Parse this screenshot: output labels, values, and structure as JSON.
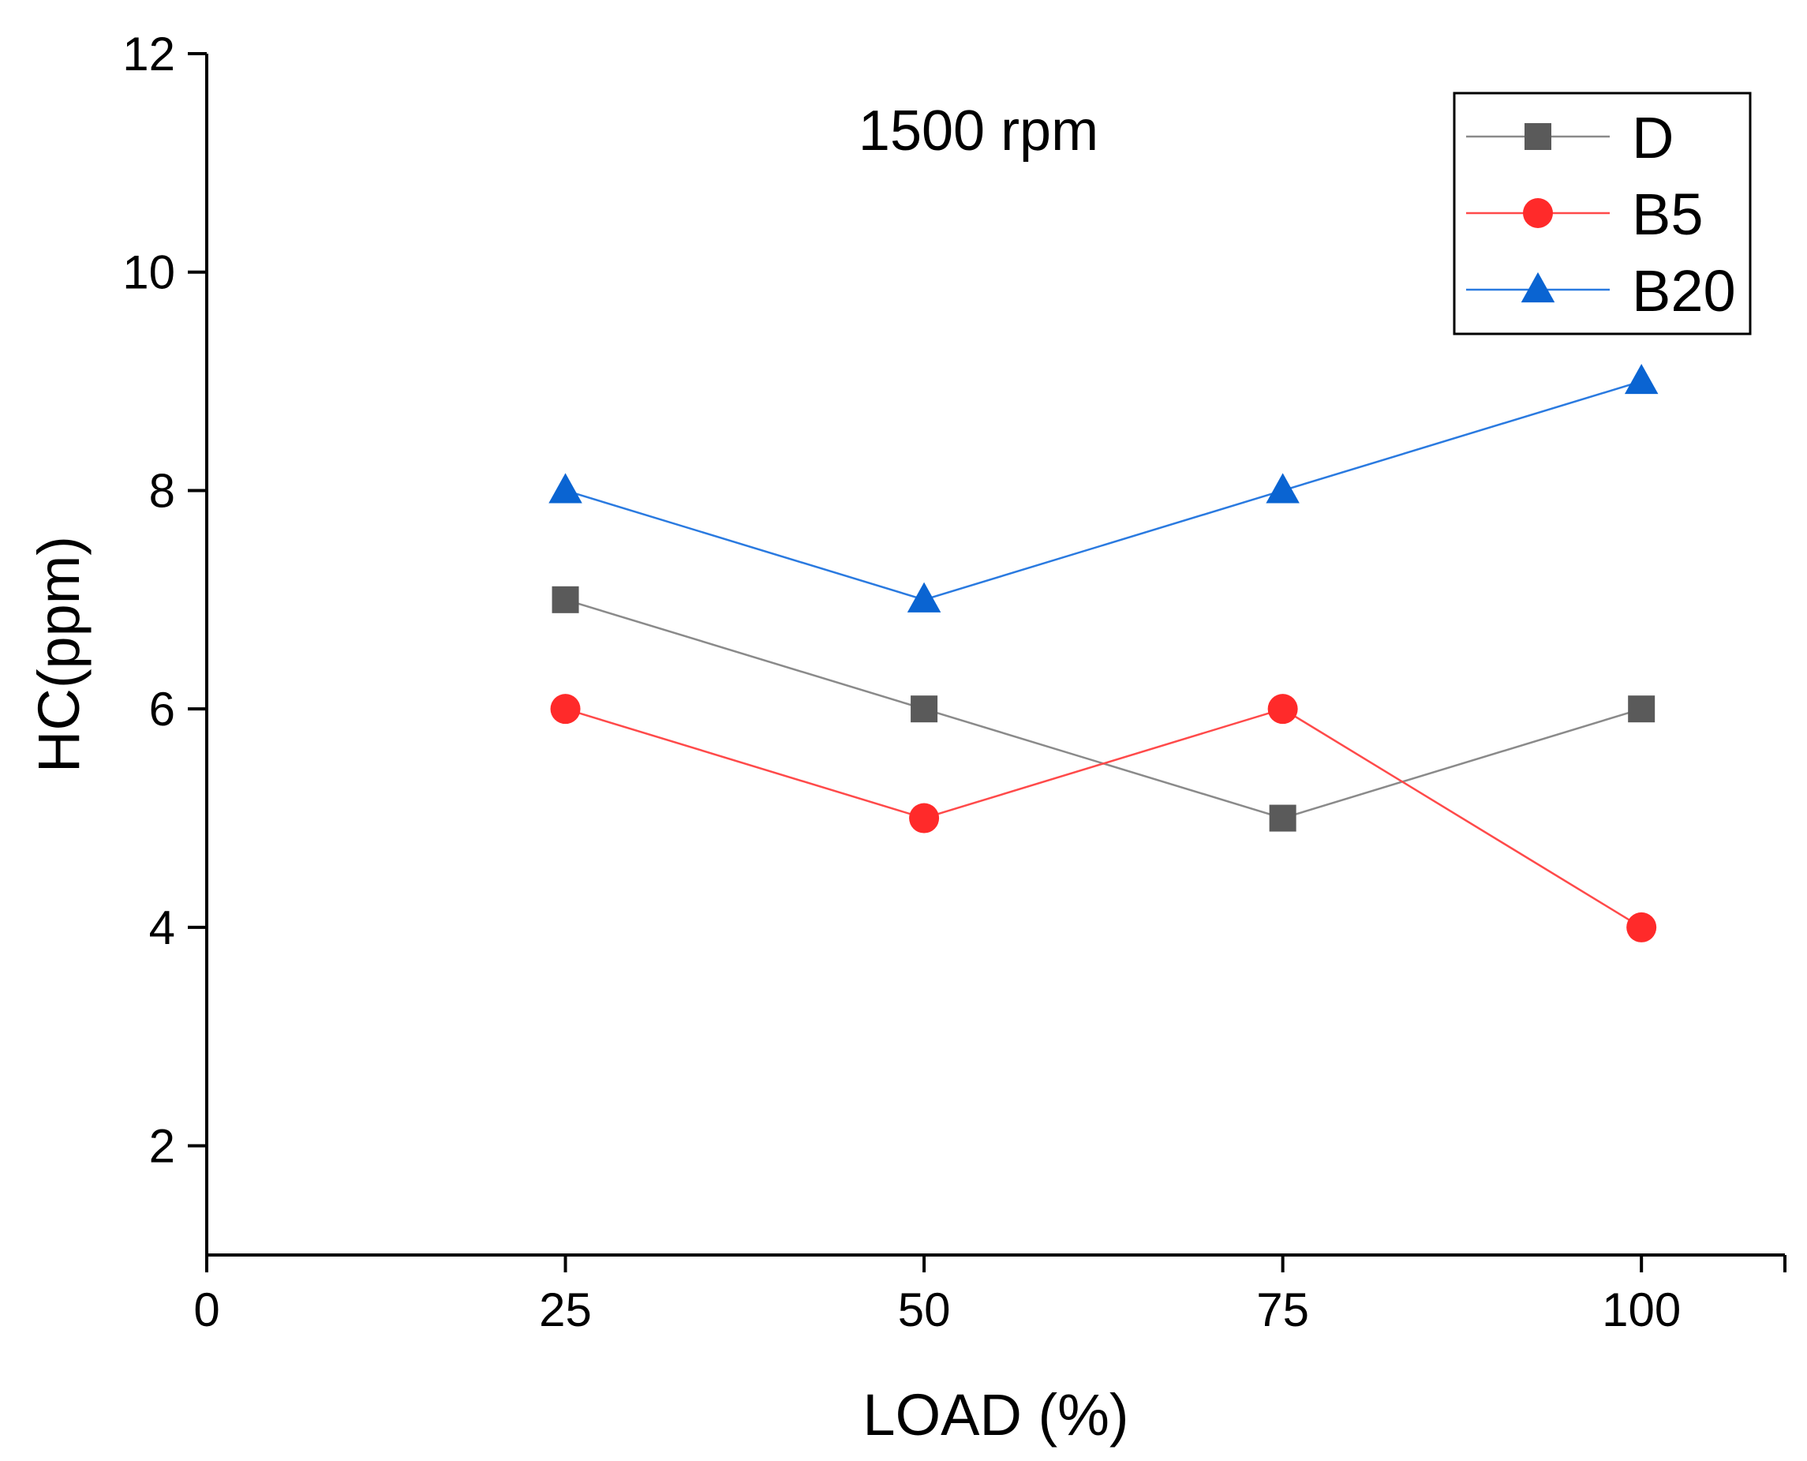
{
  "chart_data": {
    "type": "line",
    "annotation": "1500 rpm",
    "xlabel": "LOAD (%)",
    "ylabel": "HC(ppm)",
    "xlim": [
      0,
      110
    ],
    "ylim": [
      1,
      12
    ],
    "x_ticks": [
      0,
      25,
      50,
      75,
      100
    ],
    "y_ticks": [
      2,
      4,
      6,
      8,
      10,
      12
    ],
    "grid": false,
    "legend_position": "top-right",
    "x": [
      25,
      50,
      75,
      100
    ],
    "series": [
      {
        "name": "D",
        "values": [
          7,
          6,
          5,
          6
        ],
        "marker": "square",
        "color": "#5a5a5a",
        "line_color": "#8a8a8a"
      },
      {
        "name": "B5",
        "values": [
          6,
          5,
          6,
          4
        ],
        "marker": "circle",
        "color": "#ff2a2a",
        "line_color": "#ff4a4a"
      },
      {
        "name": "B20",
        "values": [
          8,
          7,
          8,
          9
        ],
        "marker": "triangle",
        "color": "#0a64d2",
        "line_color": "#2a7ae0"
      }
    ]
  }
}
